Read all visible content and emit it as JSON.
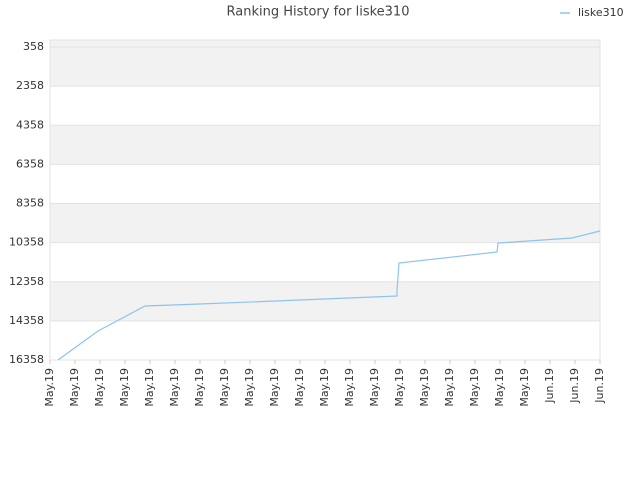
{
  "chart_data": {
    "type": "line",
    "title": "Ranking History for liske310",
    "x": [
      0.32,
      1.92,
      3.8,
      6,
      10,
      13.88,
      13.88,
      13.96,
      17.88,
      17.92,
      20.88,
      22
    ],
    "series": [
      {
        "name": "liske310",
        "color": "#8cc4ee",
        "values": [
          16358,
          14876,
          13598,
          13496,
          13291,
          13087,
          12780,
          11400,
          10838,
          10378,
          10122,
          9764
        ]
      }
    ],
    "xlim": [
      0,
      22
    ],
    "xticks": [
      {
        "value": 0,
        "label": "May.19"
      },
      {
        "value": 1,
        "label": "May.19"
      },
      {
        "value": 2,
        "label": "May.19"
      },
      {
        "value": 3,
        "label": "May.19"
      },
      {
        "value": 4,
        "label": "May.19"
      },
      {
        "value": 5,
        "label": "May.19"
      },
      {
        "value": 6,
        "label": "May.19"
      },
      {
        "value": 7,
        "label": "May.19"
      },
      {
        "value": 8,
        "label": "May.19"
      },
      {
        "value": 9,
        "label": "May.19"
      },
      {
        "value": 10,
        "label": "May.19"
      },
      {
        "value": 11,
        "label": "May.19"
      },
      {
        "value": 12,
        "label": "May.19"
      },
      {
        "value": 13,
        "label": "May.19"
      },
      {
        "value": 14,
        "label": "May.19"
      },
      {
        "value": 15,
        "label": "May.19"
      },
      {
        "value": 16,
        "label": "May.19"
      },
      {
        "value": 17,
        "label": "May.19"
      },
      {
        "value": 18,
        "label": "May.19"
      },
      {
        "value": 19,
        "label": "May.19"
      },
      {
        "value": 20,
        "label": "Jun.19"
      },
      {
        "value": 21,
        "label": "Jun.19"
      },
      {
        "value": 22,
        "label": "Jun.19"
      }
    ],
    "ylim": [
      16358,
      0
    ],
    "y_inverted": true,
    "yticks": [
      358,
      2358,
      4358,
      6358,
      8358,
      10358,
      12358,
      14358,
      16358
    ],
    "band_color": "#f2f2f2",
    "legend": "top-right"
  }
}
